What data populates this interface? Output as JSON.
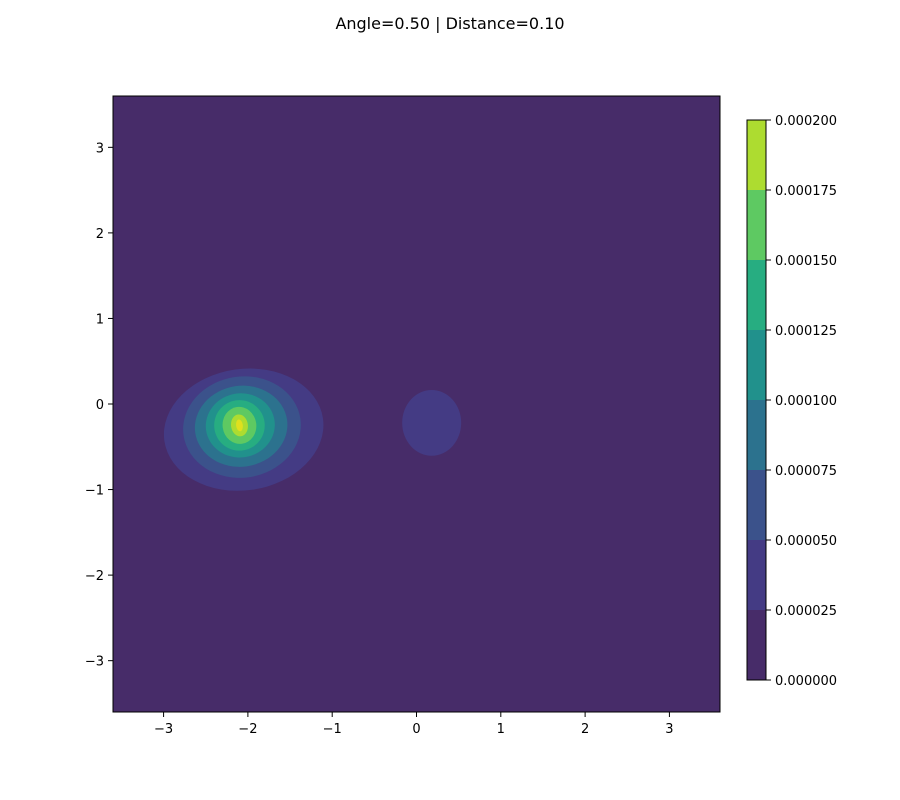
{
  "chart_data": {
    "type": "contour",
    "title": "Angle=0.50 | Distance=0.10",
    "xlabel": "",
    "ylabel": "",
    "xlim": [
      -3.6,
      3.6
    ],
    "ylim": [
      -3.6,
      3.6
    ],
    "xticks": [
      -3,
      -2,
      -1,
      0,
      1,
      2,
      3
    ],
    "yticks": [
      -3,
      -2,
      -1,
      0,
      1,
      2,
      3
    ],
    "grid": false,
    "colorbar": {
      "levels": [
        0.0,
        2.5e-05,
        5e-05,
        7.5e-05,
        0.0001,
        0.000125,
        0.00015,
        0.000175,
        0.0002
      ],
      "tick_labels": [
        "0.000000",
        "0.000025",
        "0.000050",
        "0.000075",
        "0.000100",
        "0.000125",
        "0.000150",
        "0.000175",
        "0.000200"
      ],
      "colors": [
        "#472c69",
        "#443b84",
        "#3b528b",
        "#2c728e",
        "#21918c",
        "#27ad81",
        "#5ec962",
        "#addc30",
        "#e0e01e"
      ]
    },
    "peaks": [
      {
        "x": -2.1,
        "y": -0.25,
        "max_level": 0.0002
      },
      {
        "x": 0.18,
        "y": -0.22,
        "max_level": 5e-05
      }
    ]
  }
}
